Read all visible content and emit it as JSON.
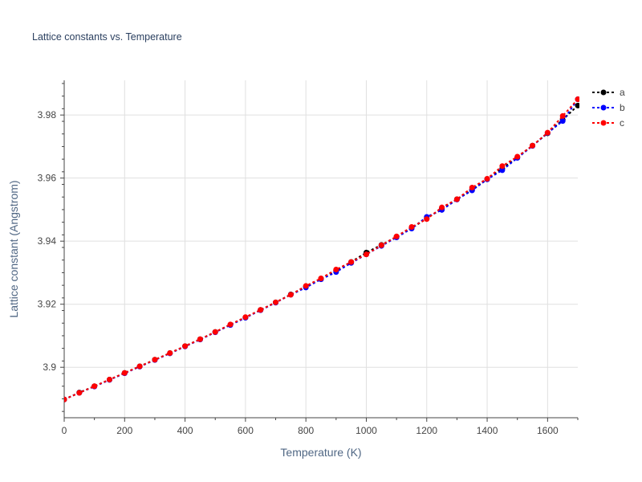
{
  "chart_data": {
    "type": "line",
    "title": "Lattice constants vs. Temperature",
    "xlabel": "Temperature (K)",
    "ylabel": "Lattice constant (Angstrom)",
    "xlim": [
      0,
      1700
    ],
    "ylim": [
      3.884,
      3.991
    ],
    "xticks": [
      0,
      200,
      400,
      600,
      800,
      1000,
      1200,
      1400,
      1600
    ],
    "yticks": [
      3.9,
      3.92,
      3.94,
      3.96,
      3.98
    ],
    "xtick_labels": [
      "0",
      "200",
      "400",
      "600",
      "800",
      "1000",
      "1200",
      "1400",
      "1600"
    ],
    "ytick_labels": [
      "3.9",
      "3.92",
      "3.94",
      "3.96",
      "3.98"
    ],
    "grid": true,
    "legend_position": "top-right",
    "x": [
      0,
      50,
      100,
      150,
      200,
      250,
      300,
      350,
      400,
      450,
      500,
      550,
      600,
      650,
      700,
      750,
      800,
      850,
      900,
      950,
      1000,
      1050,
      1100,
      1150,
      1200,
      1250,
      1300,
      1350,
      1400,
      1450,
      1500,
      1550,
      1600,
      1650,
      1700
    ],
    "series": [
      {
        "name": "a",
        "color": "#000000",
        "values": [
          3.8898,
          3.892,
          3.894,
          3.8961,
          3.8982,
          3.9003,
          3.9024,
          3.9045,
          3.9067,
          3.9089,
          3.9112,
          3.9135,
          3.9158,
          3.9182,
          3.9206,
          3.9231,
          3.9256,
          3.9281,
          3.9307,
          3.9334,
          3.9364,
          3.9388,
          3.9414,
          3.9441,
          3.9472,
          3.9503,
          3.9533,
          3.9562,
          3.9597,
          3.963,
          3.9666,
          3.9703,
          3.9742,
          3.9785,
          3.983
        ]
      },
      {
        "name": "b",
        "color": "#0000ff",
        "values": [
          3.8898,
          3.8919,
          3.8939,
          3.896,
          3.8981,
          3.9002,
          3.9023,
          3.9044,
          3.9066,
          3.9088,
          3.9111,
          3.9134,
          3.9157,
          3.9181,
          3.9205,
          3.923,
          3.9253,
          3.9279,
          3.9302,
          3.9331,
          3.9358,
          3.9385,
          3.9412,
          3.944,
          3.9477,
          3.9499,
          3.9532,
          3.9561,
          3.9596,
          3.9625,
          3.9664,
          3.9702,
          3.9743,
          3.9781,
          3.985
        ]
      },
      {
        "name": "c",
        "color": "#ff0000",
        "values": [
          3.8898,
          3.8919,
          3.894,
          3.8961,
          3.8982,
          3.9003,
          3.9024,
          3.9045,
          3.9067,
          3.9089,
          3.9112,
          3.9136,
          3.9159,
          3.9182,
          3.9206,
          3.923,
          3.9258,
          3.9282,
          3.931,
          3.9334,
          3.9358,
          3.9387,
          3.9415,
          3.9445,
          3.947,
          3.9507,
          3.9533,
          3.957,
          3.9598,
          3.9638,
          3.9668,
          3.9703,
          3.9744,
          3.9797,
          3.985
        ]
      }
    ]
  }
}
